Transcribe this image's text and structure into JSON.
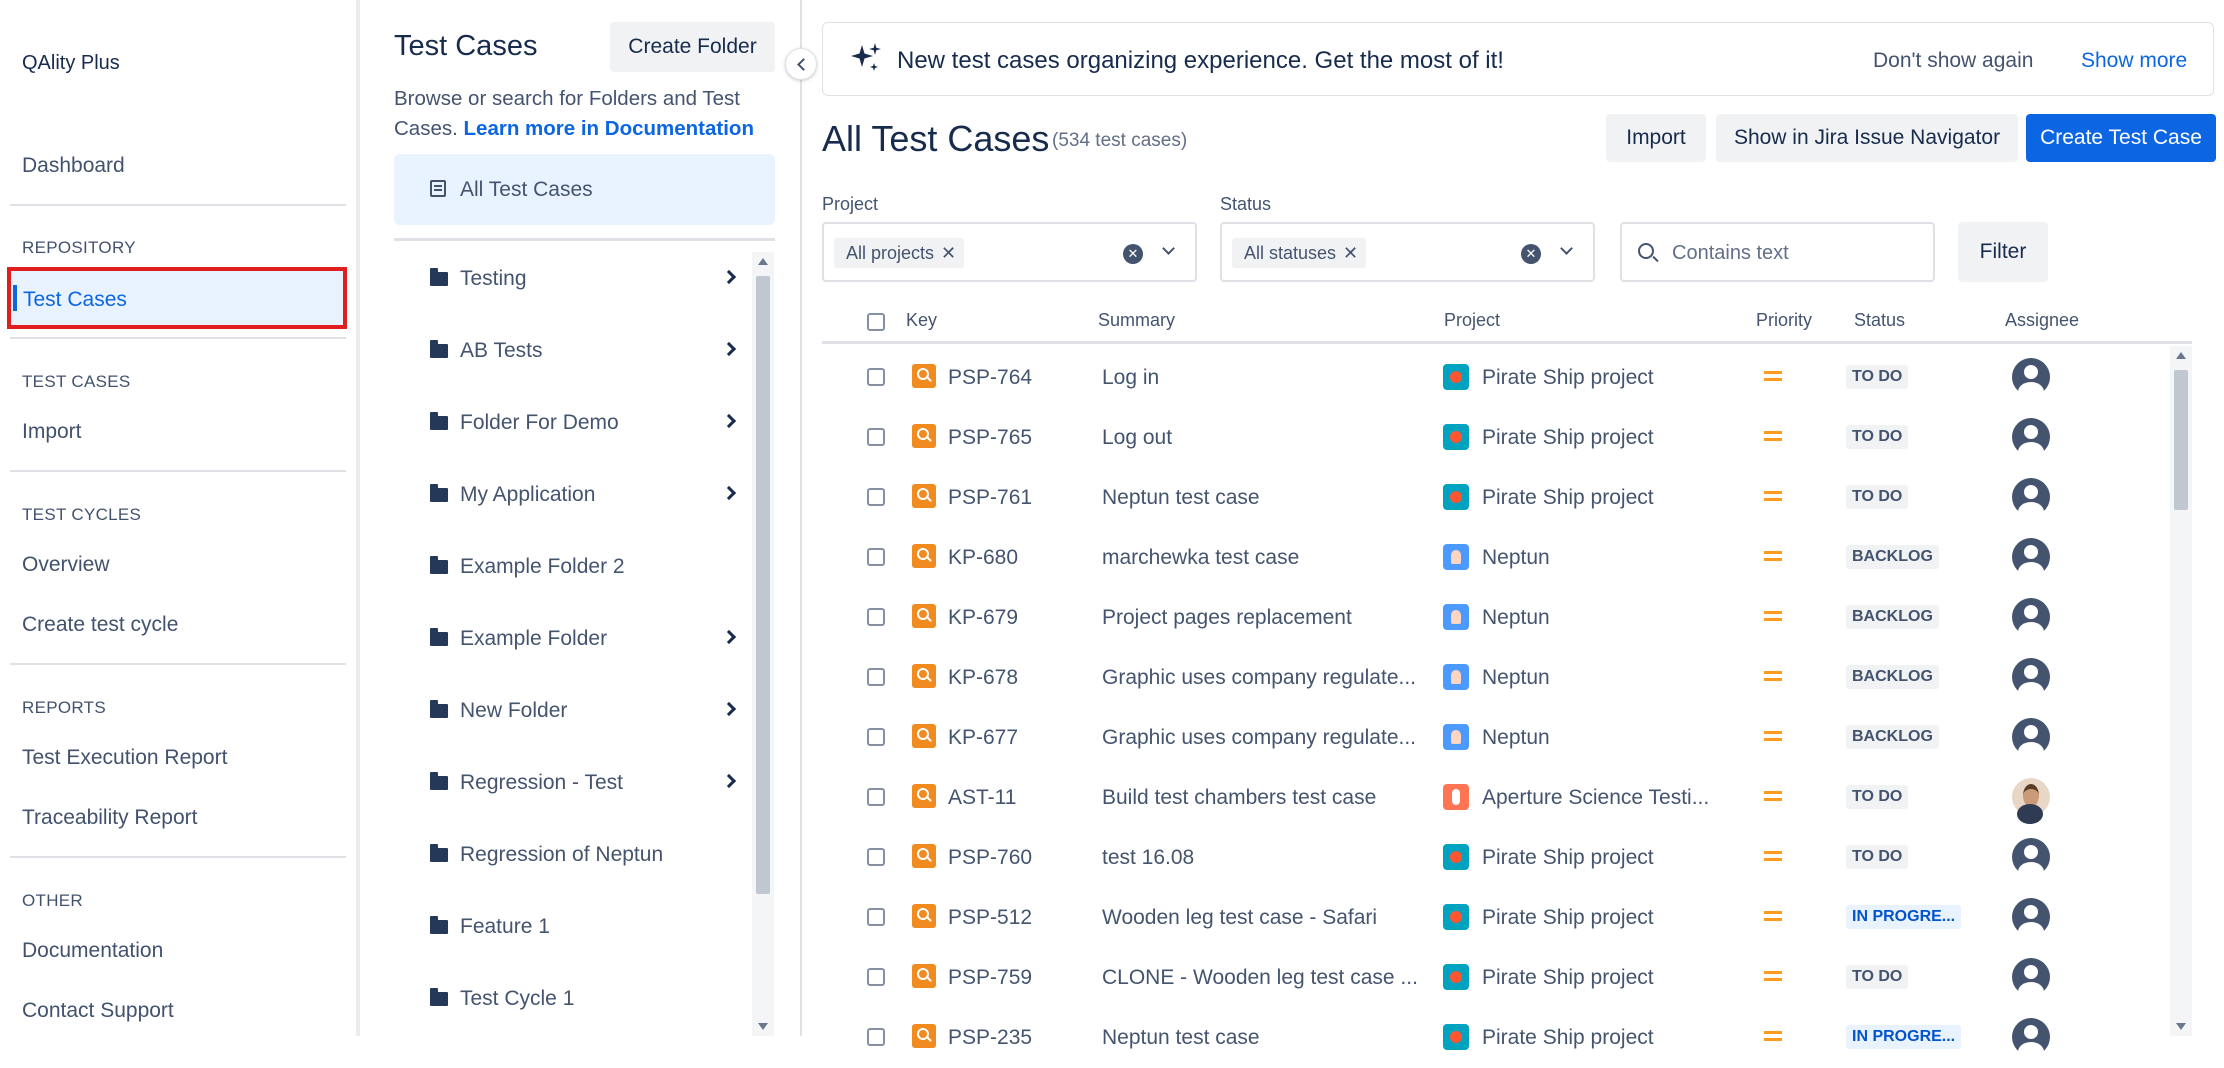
{
  "app": {
    "title": "QAlity Plus"
  },
  "nav": {
    "dashboard": "Dashboard",
    "repository": {
      "heading": "REPOSITORY",
      "test_cases": "Test Cases"
    },
    "test_cases": {
      "heading": "TEST CASES",
      "import": "Import"
    },
    "test_cycles": {
      "heading": "TEST CYCLES",
      "overview": "Overview",
      "create": "Create test cycle"
    },
    "reports": {
      "heading": "REPORTS",
      "execution": "Test Execution Report",
      "traceability": "Traceability Report"
    },
    "other": {
      "heading": "OTHER",
      "documentation": "Documentation",
      "support": "Contact Support"
    }
  },
  "folders": {
    "title": "Test Cases",
    "create_button": "Create Folder",
    "description": "Browse or search for Folders and Test Cases.",
    "learn_more": "Learn more in Documentation",
    "all_label": "All Test Cases",
    "items": [
      {
        "name": "Testing",
        "expandable": true
      },
      {
        "name": "AB Tests",
        "expandable": true
      },
      {
        "name": "Folder For Demo",
        "expandable": true
      },
      {
        "name": "My Application",
        "expandable": true
      },
      {
        "name": "Example Folder 2",
        "expandable": false
      },
      {
        "name": "Example Folder",
        "expandable": true
      },
      {
        "name": "New Folder",
        "expandable": true
      },
      {
        "name": "Regression - Test",
        "expandable": true
      },
      {
        "name": "Regression of Neptun",
        "expandable": false
      },
      {
        "name": "Feature 1",
        "expandable": false
      },
      {
        "name": "Test Cycle 1",
        "expandable": false
      }
    ]
  },
  "banner": {
    "message": "New test cases organizing experience. Get the most of it!",
    "dont_show": "Don't show again",
    "show_more": "Show more"
  },
  "main": {
    "title": "All Test Cases",
    "count": "(534 test cases)",
    "import_button": "Import",
    "jira_button": "Show in Jira Issue Navigator",
    "create_button": "Create Test Case",
    "filters": {
      "project_label": "Project",
      "project_chip": "All projects",
      "status_label": "Status",
      "status_chip": "All statuses",
      "search_placeholder": "Contains text",
      "filter_button": "Filter"
    }
  },
  "table": {
    "headers": {
      "key": "Key",
      "summary": "Summary",
      "project": "Project",
      "priority": "Priority",
      "status": "Status",
      "assignee": "Assignee"
    },
    "rows": [
      {
        "key": "PSP-764",
        "summary": "Log in",
        "project": "Pirate Ship project",
        "project_icon": "pirate",
        "status": "TO DO",
        "avatar": "default"
      },
      {
        "key": "PSP-765",
        "summary": "Log out",
        "project": "Pirate Ship project",
        "project_icon": "pirate",
        "status": "TO DO",
        "avatar": "default"
      },
      {
        "key": "PSP-761",
        "summary": "Neptun test case",
        "project": "Pirate Ship project",
        "project_icon": "pirate",
        "status": "TO DO",
        "avatar": "default"
      },
      {
        "key": "KP-680",
        "summary": "marchewka test case",
        "project": "Neptun",
        "project_icon": "neptun",
        "status": "BACKLOG",
        "avatar": "default"
      },
      {
        "key": "KP-679",
        "summary": "Project pages replacement",
        "project": "Neptun",
        "project_icon": "neptun",
        "status": "BACKLOG",
        "avatar": "default"
      },
      {
        "key": "KP-678",
        "summary": "Graphic uses company regulate...",
        "project": "Neptun",
        "project_icon": "neptun",
        "status": "BACKLOG",
        "avatar": "default"
      },
      {
        "key": "KP-677",
        "summary": "Graphic uses company regulate...",
        "project": "Neptun",
        "project_icon": "neptun",
        "status": "BACKLOG",
        "avatar": "default"
      },
      {
        "key": "AST-11",
        "summary": "Build test chambers test case",
        "project": "Aperture Science Testi...",
        "project_icon": "aperture",
        "status": "TO DO",
        "avatar": "photo"
      },
      {
        "key": "PSP-760",
        "summary": "test 16.08",
        "project": "Pirate Ship project",
        "project_icon": "pirate",
        "status": "TO DO",
        "avatar": "default"
      },
      {
        "key": "PSP-512",
        "summary": "Wooden leg test case - Safari",
        "project": "Pirate Ship project",
        "project_icon": "pirate",
        "status": "IN PROGRE...",
        "avatar": "default"
      },
      {
        "key": "PSP-759",
        "summary": "CLONE - Wooden leg test case ...",
        "project": "Pirate Ship project",
        "project_icon": "pirate",
        "status": "TO DO",
        "avatar": "default"
      },
      {
        "key": "PSP-235",
        "summary": "Neptun test case",
        "project": "Pirate Ship project",
        "project_icon": "pirate",
        "status": "IN PROGRE...",
        "avatar": "default"
      }
    ]
  }
}
